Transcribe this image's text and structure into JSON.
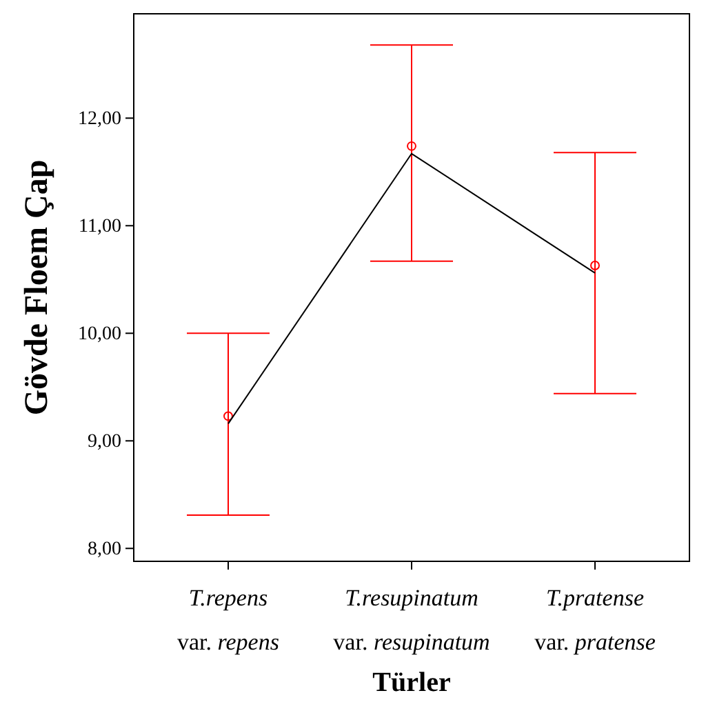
{
  "chart_data": {
    "type": "scatter",
    "xlabel": "Türler",
    "ylabel": "Gövde Floem Çap",
    "categories": [
      "T.repens var. repens",
      "T.resupinatum var. resupinatum",
      "T.pratense var. pratense"
    ],
    "ylim": [
      7.88,
      12.97
    ],
    "yticks": [
      {
        "value": 8,
        "label": "8,00"
      },
      {
        "value": 9,
        "label": "9,00"
      },
      {
        "value": 10,
        "label": "10,00"
      },
      {
        "value": 11,
        "label": "11,00"
      },
      {
        "value": 12,
        "label": "12,00"
      }
    ],
    "grid": false,
    "series": [
      {
        "color": "#ff0000",
        "marker": "circle",
        "values": [
          9.23,
          11.74,
          10.63
        ],
        "errors": [
          [
            8.31,
            10.0
          ],
          [
            10.67,
            12.68
          ],
          [
            9.44,
            11.68
          ]
        ]
      },
      {
        "type": "line",
        "color": "#000000",
        "marker": "none",
        "line_style": "solid",
        "values": [
          9.16,
          11.67,
          10.56
        ]
      }
    ]
  }
}
